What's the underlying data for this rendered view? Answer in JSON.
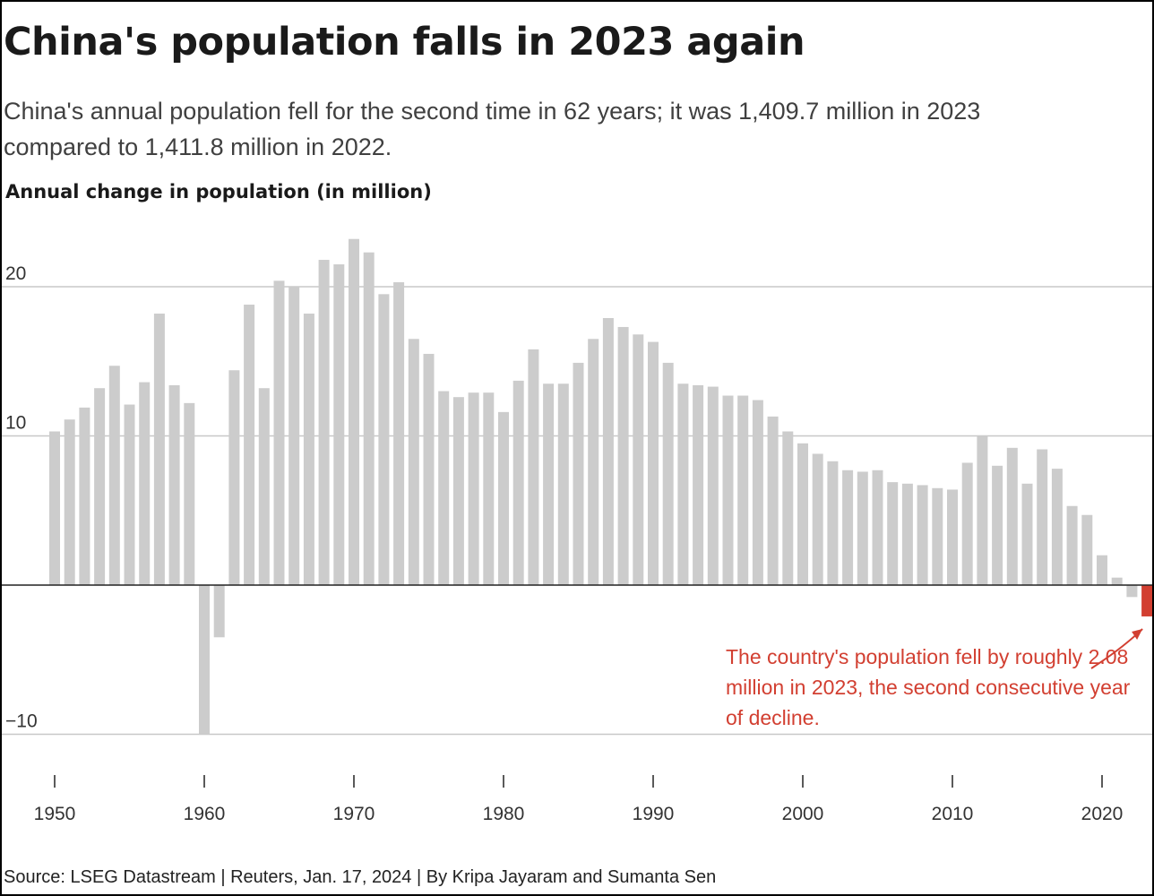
{
  "header": {
    "title": "China's population falls in 2023 again",
    "subtitle": "China's annual population fell for the second time in 62 years; it was 1,409.7 million in 2023 compared to 1,411.8 million in 2022."
  },
  "footer": {
    "source": "Source: LSEG Datastream | Reuters, Jan. 17, 2024 | By Kripa Jayaram and Sumanta Sen"
  },
  "colors": {
    "bar": "#cccccc",
    "highlight": "#d23f31",
    "grid": "#c8c8c8",
    "zero_line": "#222222"
  },
  "chart_data": {
    "type": "bar",
    "title": "Annual change in population (in million)",
    "xlabel": "",
    "ylabel": "",
    "ylim": [
      -10,
      23.5
    ],
    "yticks": [
      -10,
      10,
      20
    ],
    "xticks": [
      1950,
      1960,
      1970,
      1980,
      1990,
      2000,
      2010,
      2020
    ],
    "grid": true,
    "years": [
      1950,
      1951,
      1952,
      1953,
      1954,
      1955,
      1956,
      1957,
      1958,
      1959,
      1960,
      1961,
      1962,
      1963,
      1964,
      1965,
      1966,
      1967,
      1968,
      1969,
      1970,
      1971,
      1972,
      1973,
      1974,
      1975,
      1976,
      1977,
      1978,
      1979,
      1980,
      1981,
      1982,
      1983,
      1984,
      1985,
      1986,
      1987,
      1988,
      1989,
      1990,
      1991,
      1992,
      1993,
      1994,
      1995,
      1996,
      1997,
      1998,
      1999,
      2000,
      2001,
      2002,
      2003,
      2004,
      2005,
      2006,
      2007,
      2008,
      2009,
      2010,
      2011,
      2012,
      2013,
      2014,
      2015,
      2016,
      2017,
      2018,
      2019,
      2020,
      2021,
      2022,
      2023
    ],
    "values": [
      10.3,
      11.1,
      11.9,
      13.2,
      14.7,
      12.1,
      13.6,
      18.2,
      13.4,
      12.2,
      -10.0,
      -3.5,
      14.4,
      18.8,
      13.2,
      20.4,
      20.0,
      18.2,
      21.8,
      21.5,
      23.2,
      22.3,
      19.5,
      20.3,
      16.5,
      15.5,
      13.0,
      12.6,
      12.9,
      12.9,
      11.6,
      13.7,
      15.8,
      13.5,
      13.5,
      14.9,
      16.5,
      17.9,
      17.3,
      16.8,
      16.3,
      14.9,
      13.5,
      13.4,
      13.3,
      12.7,
      12.7,
      12.4,
      11.3,
      10.3,
      9.5,
      8.8,
      8.3,
      7.7,
      7.6,
      7.7,
      6.9,
      6.8,
      6.7,
      6.5,
      6.4,
      8.2,
      10.0,
      8.0,
      9.2,
      6.8,
      9.1,
      7.8,
      5.3,
      4.7,
      2.0,
      0.5,
      -0.8,
      -2.1
    ],
    "highlight_year": 2023,
    "annotation": "The country's population fell by roughly 2.08 million in 2023, the second consecutive year of decline."
  }
}
